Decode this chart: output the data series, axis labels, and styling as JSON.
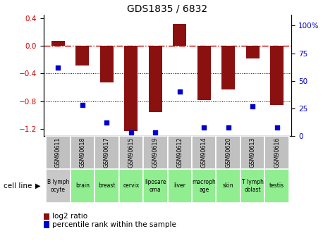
{
  "title": "GDS1835 / 6832",
  "gsm_labels": [
    "GSM90611",
    "GSM90618",
    "GSM90617",
    "GSM90615",
    "GSM90619",
    "GSM90612",
    "GSM90614",
    "GSM90620",
    "GSM90613",
    "GSM90616"
  ],
  "cell_lines": [
    "B lymph\nocyte",
    "brain",
    "breast",
    "cervix",
    "liposare\noma",
    "liver",
    "macroph\nage",
    "skin",
    "T lymph\noblast",
    "testis"
  ],
  "cell_line_colors": [
    "#c8c8c8",
    "#90ee90",
    "#90ee90",
    "#90ee90",
    "#90ee90",
    "#90ee90",
    "#90ee90",
    "#90ee90",
    "#90ee90",
    "#90ee90"
  ],
  "log2_ratio": [
    0.07,
    -0.28,
    -0.53,
    -1.23,
    -0.95,
    0.32,
    -0.78,
    -0.63,
    -0.18,
    -0.85
  ],
  "percentile_rank": [
    62,
    28,
    12,
    3,
    3,
    40,
    8,
    8,
    27,
    8
  ],
  "bar_color": "#8B1010",
  "dot_color": "#0000CC",
  "dashed_line_color": "#CC0000",
  "ylim_left": [
    -1.3,
    0.45
  ],
  "ylim_right": [
    0,
    110
  ],
  "yticks_left": [
    -1.2,
    -0.8,
    -0.4,
    0.0,
    0.4
  ],
  "yticks_right": [
    0,
    25,
    50,
    75,
    100
  ],
  "ylabel_left_color": "#CC0000",
  "ylabel_right_color": "#0000CC"
}
